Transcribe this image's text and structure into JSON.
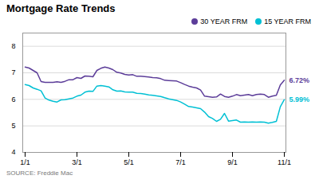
{
  "chart_data": {
    "type": "line",
    "title": "Mortgage Rate Trends",
    "caption": "SOURCE: Freddie Mac",
    "categories": [
      "1/1",
      null,
      null,
      null,
      null,
      null,
      null,
      null,
      null,
      null,
      null,
      null,
      null,
      "3/1",
      null,
      null,
      null,
      null,
      null,
      null,
      null,
      null,
      null,
      null,
      null,
      null,
      "5/1",
      null,
      null,
      null,
      null,
      null,
      null,
      null,
      null,
      null,
      null,
      null,
      null,
      "7/1",
      null,
      null,
      null,
      null,
      null,
      null,
      null,
      null,
      null,
      null,
      null,
      null,
      "9/1",
      null,
      null,
      null,
      null,
      null,
      null,
      null,
      null,
      null,
      null,
      null,
      null,
      "11/1"
    ],
    "series": [
      {
        "name": "30 YEAR FRM",
        "color": "#5c3d99",
        "values": [
          7.22,
          7.18,
          7.09,
          7.0,
          6.67,
          6.64,
          6.64,
          6.64,
          6.66,
          6.64,
          6.68,
          6.74,
          6.74,
          6.82,
          6.79,
          6.88,
          6.87,
          6.85,
          7.09,
          7.17,
          7.22,
          7.18,
          7.12,
          7.02,
          6.99,
          6.94,
          6.92,
          6.93,
          6.87,
          6.87,
          6.86,
          6.84,
          6.82,
          6.81,
          6.78,
          6.72,
          6.71,
          6.7,
          6.69,
          6.63,
          6.56,
          6.5,
          6.46,
          6.43,
          6.35,
          6.12,
          6.1,
          6.08,
          6.09,
          6.2,
          6.11,
          6.08,
          6.12,
          6.18,
          6.14,
          6.16,
          6.18,
          6.14,
          6.18,
          6.2,
          6.18,
          6.08,
          6.12,
          6.15,
          6.54,
          6.72
        ]
      },
      {
        "name": "15 YEAR FRM",
        "color": "#00c0d4",
        "values": [
          6.56,
          6.52,
          6.43,
          6.38,
          6.32,
          6.05,
          5.97,
          5.93,
          5.9,
          5.98,
          5.99,
          6.02,
          6.05,
          6.12,
          6.16,
          6.27,
          6.31,
          6.3,
          6.5,
          6.52,
          6.5,
          6.47,
          6.36,
          6.31,
          6.32,
          6.28,
          6.27,
          6.27,
          6.23,
          6.22,
          6.2,
          6.17,
          6.15,
          6.13,
          6.11,
          6.06,
          6.02,
          5.99,
          5.96,
          5.9,
          5.82,
          5.73,
          5.71,
          5.68,
          5.65,
          5.52,
          5.35,
          5.28,
          5.17,
          5.25,
          5.47,
          5.18,
          5.2,
          5.22,
          5.14,
          5.15,
          5.14,
          5.15,
          5.14,
          5.15,
          5.14,
          5.1,
          5.13,
          5.17,
          5.72,
          5.99
        ]
      }
    ],
    "annotations": [
      {
        "text": "6.72%",
        "x": "11/1",
        "y": 6.72,
        "color": "#5c3d99"
      },
      {
        "text": "5.99%",
        "x": "11/1",
        "y": 5.99,
        "color": "#00c0d4"
      }
    ],
    "ylim": [
      4.0,
      8.5
    ],
    "yticks": [
      4,
      5,
      6,
      7,
      8
    ],
    "grid": true,
    "legend": "upper right"
  }
}
